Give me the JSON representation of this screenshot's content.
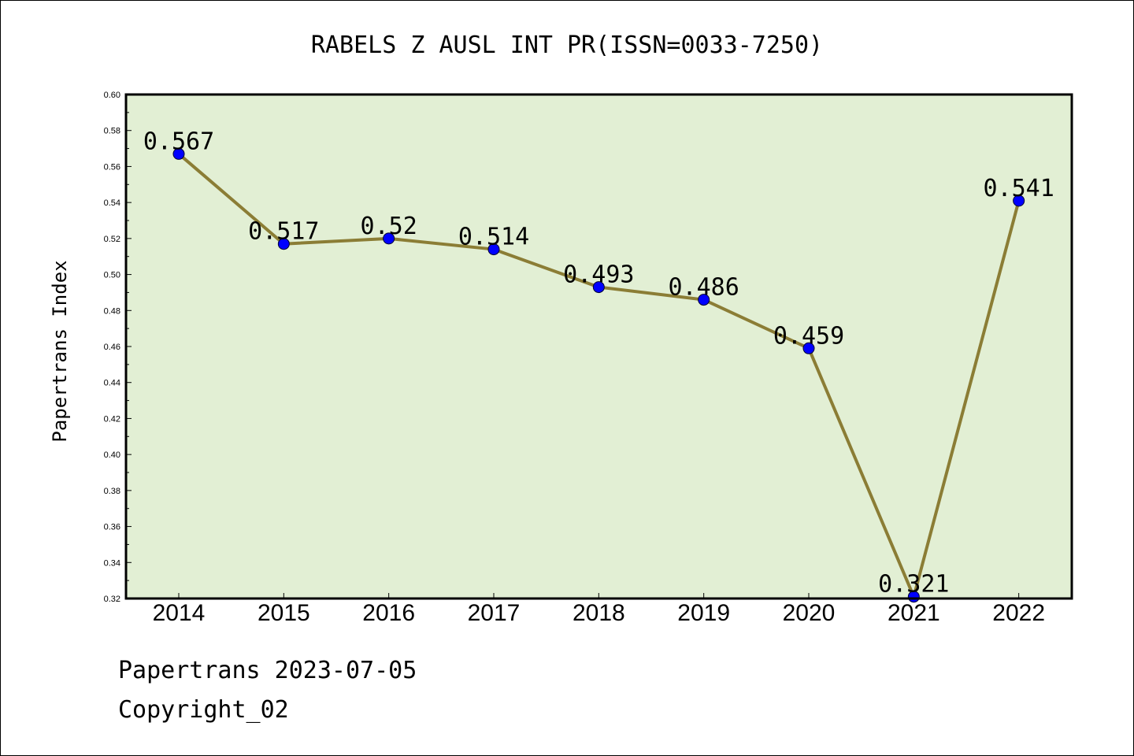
{
  "chart_data": {
    "type": "line",
    "title": "RABELS Z AUSL INT PR(ISSN=0033-7250)",
    "xlabel": "",
    "ylabel": "Papertrans Index",
    "categories": [
      "2014",
      "2015",
      "2016",
      "2017",
      "2018",
      "2019",
      "2020",
      "2021",
      "2022"
    ],
    "series": [
      {
        "values": [
          0.567,
          0.517,
          0.52,
          0.514,
          0.493,
          0.486,
          0.459,
          0.321,
          0.541
        ],
        "labels": [
          "0.567",
          "0.517",
          "0.52",
          "0.514",
          "0.493",
          "0.486",
          "0.459",
          "0.321",
          "0.541"
        ],
        "line_color": "#8b7d35",
        "marker_color": "#0000ff"
      }
    ],
    "ylim": [
      0.32,
      0.6
    ],
    "yticks": [
      "0.32",
      "0.34",
      "0.36",
      "0.38",
      "0.40",
      "0.42",
      "0.44",
      "0.46",
      "0.48",
      "0.50",
      "0.52",
      "0.54",
      "0.56",
      "0.58",
      "0.60"
    ],
    "plot_background": "#e2efd4",
    "grid": false,
    "legend": "none"
  },
  "footer": {
    "line1": "Papertrans 2023-07-05",
    "line2": "Copyright_02"
  }
}
